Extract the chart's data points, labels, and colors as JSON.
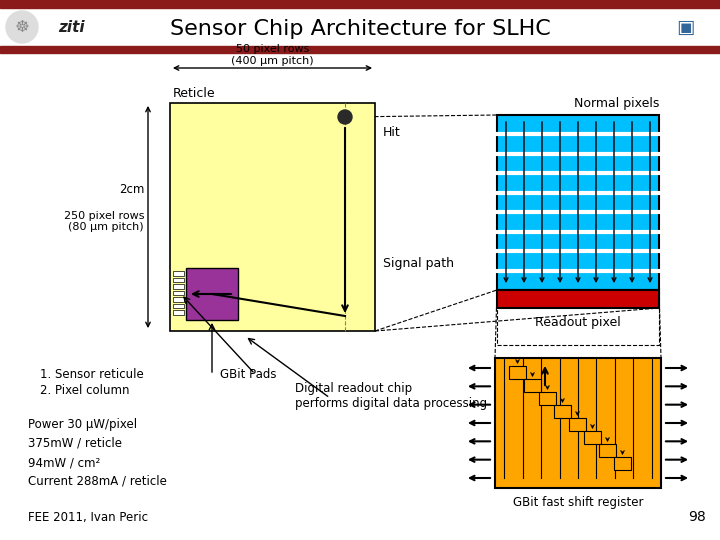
{
  "title": "Sensor Chip Architecture for SLHC",
  "bg_color": "#ffffff",
  "header_bar_color": "#8B1A1A",
  "title_fontsize": 16,
  "annotations": {
    "50_pixel_rows": "50 pixel rows\n(400 μm pitch)",
    "reticle": "Reticle",
    "hit": "Hit",
    "signal_path": "Signal path",
    "normal_pixels": "Normal pixels",
    "readout_pixel": "Readout pixel",
    "gbit_fast": "GBit fast shift register",
    "2cm": "2cm",
    "250_pixel": "250 pixel rows\n(80 μm pitch)",
    "sensor_reticule": "1. Sensor reticule",
    "pixel_column": "2. Pixel column",
    "gbit_pads": "GBit Pads",
    "digital_readout": "Digital readout chip\nperforms digital data processing",
    "power": "Power 30 μW/pixel\n375mW / reticle\n94mW / cm²\nCurrent 288mA / reticle",
    "fee": "FEE 2011, Ivan Peric",
    "page": "98"
  },
  "yellow_fill": "#FFFFA0",
  "cyan_fill": "#00BFFF",
  "red_fill": "#CC0000",
  "orange_fill": "#FFA500",
  "purple_fill": "#993399"
}
